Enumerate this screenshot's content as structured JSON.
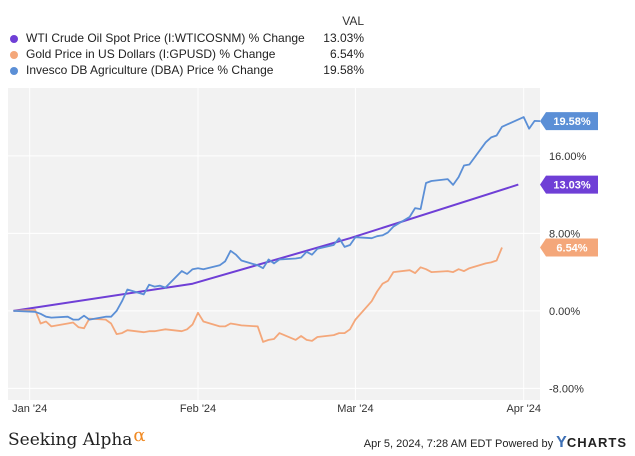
{
  "legend": {
    "header": "VAL",
    "items": [
      {
        "label": "WTI Crude Oil Spot Price (I:WTICOSNM) % Change",
        "value": "13.03%",
        "color": "#6f3fd6"
      },
      {
        "label": "Gold Price in US Dollars (I:GPUSD) % Change",
        "value": "6.54%",
        "color": "#f4a77a"
      },
      {
        "label": "Invesco DB Agriculture (DBA) Price % Change",
        "value": "19.58%",
        "color": "#5b8fd6"
      }
    ]
  },
  "footer": {
    "brand": "Seeking Alpha",
    "brand_symbol": "α",
    "date_text": "Apr 5, 2024, 7:28 AM EDT Powered by",
    "ycharts_y": "Y",
    "ycharts_rest": "CHARTS"
  },
  "chart_data": {
    "type": "line",
    "x_tick_labels": [
      "Jan '24",
      "Feb '24",
      "Mar '24",
      "Apr '24"
    ],
    "x_tick_dates": [
      "2024-01-01",
      "2024-02-01",
      "2024-03-01",
      "2024-04-01"
    ],
    "xlim": [
      "2023-12-28",
      "2024-04-04"
    ],
    "ylim": [
      -9.2,
      23.0
    ],
    "y_ticks": [
      -8,
      0,
      8,
      16
    ],
    "y_tick_labels": [
      "-8.00%",
      "0.00%",
      "8.00%",
      "16.00%"
    ],
    "grid": true,
    "legend_position": "top-left",
    "series": [
      {
        "name": "WTI Crude Oil Spot Price (I:WTICOSNM) % Change",
        "color": "#6f3fd6",
        "end_label": "13.03%",
        "x": [
          "2023-12-29",
          "2024-01-31",
          "2024-02-29",
          "2024-03-31"
        ],
        "y": [
          0.0,
          2.8,
          7.5,
          13.03
        ]
      },
      {
        "name": "Gold Price in US Dollars (I:GPUSD) % Change",
        "color": "#f4a77a",
        "end_label": "6.54%",
        "x": [
          "2023-12-29",
          "2024-01-02",
          "2024-01-03",
          "2024-01-04",
          "2024-01-05",
          "2024-01-08",
          "2024-01-09",
          "2024-01-10",
          "2024-01-11",
          "2024-01-12",
          "2024-01-15",
          "2024-01-16",
          "2024-01-17",
          "2024-01-18",
          "2024-01-19",
          "2024-01-22",
          "2024-01-23",
          "2024-01-24",
          "2024-01-25",
          "2024-01-26",
          "2024-01-29",
          "2024-01-30",
          "2024-01-31",
          "2024-02-01",
          "2024-02-02",
          "2024-02-05",
          "2024-02-06",
          "2024-02-07",
          "2024-02-08",
          "2024-02-09",
          "2024-02-12",
          "2024-02-13",
          "2024-02-14",
          "2024-02-15",
          "2024-02-16",
          "2024-02-19",
          "2024-02-20",
          "2024-02-21",
          "2024-02-22",
          "2024-02-23",
          "2024-02-26",
          "2024-02-27",
          "2024-02-28",
          "2024-02-29",
          "2024-03-01",
          "2024-03-04",
          "2024-03-05",
          "2024-03-06",
          "2024-03-07",
          "2024-03-08",
          "2024-03-11",
          "2024-03-12",
          "2024-03-13",
          "2024-03-14",
          "2024-03-15",
          "2024-03-18",
          "2024-03-19",
          "2024-03-20",
          "2024-03-21",
          "2024-03-22",
          "2024-03-25",
          "2024-03-26",
          "2024-03-27",
          "2024-03-28"
        ],
        "y": [
          0.0,
          0.1,
          -1.3,
          -1.1,
          -1.6,
          -1.3,
          -1.2,
          -1.7,
          -1.8,
          -0.8,
          -0.9,
          -1.3,
          -2.4,
          -2.3,
          -2.0,
          -2.2,
          -2.1,
          -2.1,
          -2.0,
          -1.9,
          -2.1,
          -1.9,
          -1.4,
          -0.2,
          -1.1,
          -1.6,
          -1.6,
          -1.3,
          -1.4,
          -1.5,
          -1.6,
          -3.2,
          -3.0,
          -2.9,
          -2.3,
          -3.0,
          -2.6,
          -3.0,
          -3.1,
          -2.7,
          -2.5,
          -2.3,
          -2.3,
          -1.9,
          -0.9,
          1.0,
          2.0,
          2.8,
          3.1,
          4.0,
          4.2,
          3.9,
          4.5,
          4.3,
          4.0,
          4.1,
          4.0,
          4.3,
          4.1,
          4.4,
          4.9,
          5.0,
          5.2,
          6.54
        ]
      },
      {
        "name": "Invesco DB Agriculture (DBA) Price % Change",
        "color": "#5b8fd6",
        "end_label": "19.58%",
        "x": [
          "2023-12-29",
          "2024-01-02",
          "2024-01-03",
          "2024-01-04",
          "2024-01-05",
          "2024-01-08",
          "2024-01-09",
          "2024-01-10",
          "2024-01-11",
          "2024-01-12",
          "2024-01-15",
          "2024-01-16",
          "2024-01-17",
          "2024-01-18",
          "2024-01-19",
          "2024-01-22",
          "2024-01-23",
          "2024-01-24",
          "2024-01-25",
          "2024-01-26",
          "2024-01-29",
          "2024-01-30",
          "2024-01-31",
          "2024-02-01",
          "2024-02-02",
          "2024-02-05",
          "2024-02-06",
          "2024-02-07",
          "2024-02-08",
          "2024-02-09",
          "2024-02-12",
          "2024-02-13",
          "2024-02-14",
          "2024-02-15",
          "2024-02-16",
          "2024-02-19",
          "2024-02-20",
          "2024-02-21",
          "2024-02-22",
          "2024-02-23",
          "2024-02-26",
          "2024-02-27",
          "2024-02-28",
          "2024-02-29",
          "2024-03-01",
          "2024-03-04",
          "2024-03-05",
          "2024-03-06",
          "2024-03-07",
          "2024-03-08",
          "2024-03-11",
          "2024-03-12",
          "2024-03-13",
          "2024-03-14",
          "2024-03-15",
          "2024-03-18",
          "2024-03-19",
          "2024-03-20",
          "2024-03-21",
          "2024-03-22",
          "2024-03-25",
          "2024-03-26",
          "2024-03-27",
          "2024-03-28",
          "2024-04-01",
          "2024-04-02",
          "2024-04-03",
          "2024-04-04"
        ],
        "y": [
          0.0,
          -0.1,
          -0.3,
          -0.6,
          -0.7,
          -0.6,
          -0.9,
          -0.9,
          -0.5,
          -0.9,
          -0.6,
          -0.6,
          0.0,
          1.0,
          2.2,
          1.7,
          2.7,
          2.5,
          2.6,
          2.4,
          4.1,
          3.8,
          4.3,
          4.4,
          4.3,
          4.7,
          5.1,
          6.2,
          5.8,
          5.2,
          4.7,
          4.4,
          5.3,
          4.9,
          5.3,
          5.4,
          5.5,
          6.1,
          5.8,
          6.4,
          6.8,
          7.5,
          6.6,
          6.8,
          7.6,
          7.5,
          7.7,
          7.8,
          8.1,
          8.7,
          9.7,
          10.6,
          10.5,
          13.2,
          13.4,
          13.6,
          13.0,
          13.8,
          15.0,
          15.1,
          17.4,
          17.9,
          18.1,
          19.0,
          20.0,
          18.8,
          19.6,
          19.58
        ]
      }
    ]
  }
}
